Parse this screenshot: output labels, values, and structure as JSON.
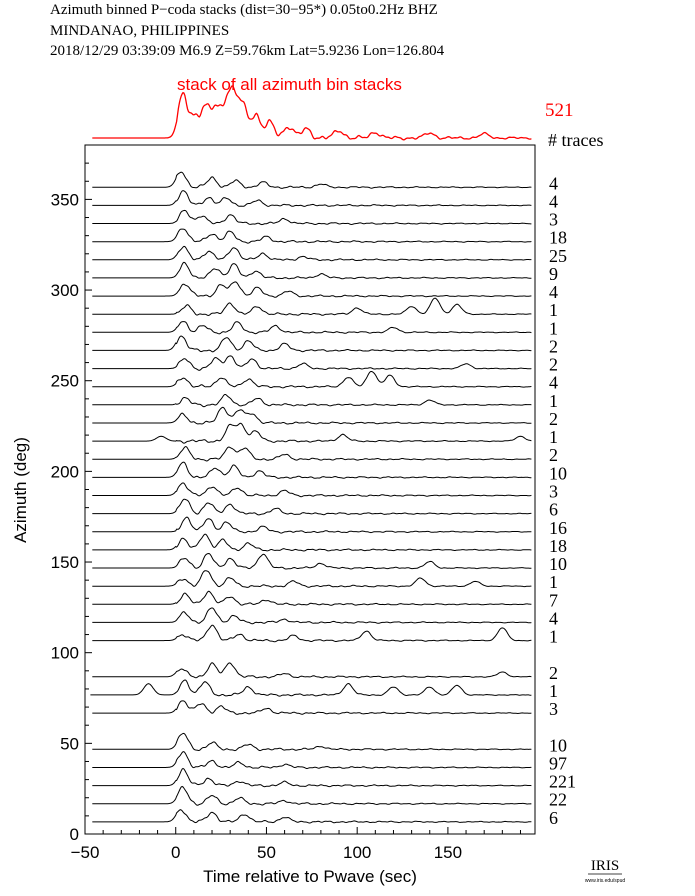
{
  "header": {
    "line1": "Azimuth binned P−coda stacks (dist=30−95*)  0.05to0.2Hz  BHZ",
    "line2": "MINDANAO, PHILIPPINES",
    "line3": "2018/12/29  03:39:09  M6.9  Z=59.76km Lat=5.9236 Lon=126.804"
  },
  "logo": {
    "text": "IRIS",
    "sub": "www.iris.edu/spud"
  },
  "colors": {
    "stack": "#ff0000",
    "trace": "#000000"
  },
  "chart_data": {
    "type": "line",
    "stack": {
      "label": "stack of all azimuth bin stacks",
      "count": "521",
      "peaks": [
        [
          4,
          1.0
        ],
        [
          10,
          0.45
        ],
        [
          16,
          0.65
        ],
        [
          22,
          0.7
        ],
        [
          28,
          0.75
        ],
        [
          32,
          0.78
        ],
        [
          37,
          0.7
        ],
        [
          44,
          0.55
        ],
        [
          52,
          0.35
        ],
        [
          62,
          0.28
        ],
        [
          72,
          0.22
        ],
        [
          90,
          0.18
        ],
        [
          110,
          0.14
        ],
        [
          140,
          0.12
        ],
        [
          170,
          0.1
        ]
      ]
    },
    "traces_header": "# traces",
    "xlabel": "Time relative to Pwave (sec)",
    "ylabel": "Azimuth (deg)",
    "xlim": [
      -50,
      198
    ],
    "ylim": [
      0,
      380
    ],
    "xticks": [
      -50,
      0,
      50,
      100,
      150
    ],
    "yticks": [
      0,
      50,
      100,
      150,
      200,
      250,
      300,
      350
    ],
    "traces": [
      {
        "azimuth": 360,
        "count": "4",
        "peaks": [
          [
            3,
            1.0
          ],
          [
            20,
            0.6
          ],
          [
            33,
            0.4
          ],
          [
            48,
            0.3
          ],
          [
            80,
            0.2
          ]
        ]
      },
      {
        "azimuth": 350,
        "count": "4",
        "peaks": [
          [
            4,
            0.9
          ],
          [
            18,
            0.5
          ],
          [
            28,
            0.45
          ],
          [
            45,
            0.3
          ]
        ]
      },
      {
        "azimuth": 340,
        "count": "3",
        "peaks": [
          [
            5,
            0.8
          ],
          [
            14,
            0.5
          ],
          [
            30,
            0.55
          ],
          [
            60,
            0.3
          ]
        ]
      },
      {
        "azimuth": 330,
        "count": "18",
        "peaks": [
          [
            4,
            0.9
          ],
          [
            20,
            0.5
          ],
          [
            30,
            0.6
          ],
          [
            50,
            0.3
          ]
        ]
      },
      {
        "azimuth": 320,
        "count": "25",
        "peaks": [
          [
            4,
            0.8
          ],
          [
            18,
            0.55
          ],
          [
            32,
            0.8
          ],
          [
            48,
            0.4
          ],
          [
            70,
            0.2
          ]
        ]
      },
      {
        "azimuth": 310,
        "count": "9",
        "peaks": [
          [
            5,
            0.9
          ],
          [
            22,
            0.6
          ],
          [
            32,
            0.85
          ],
          [
            44,
            0.45
          ],
          [
            80,
            0.25
          ]
        ]
      },
      {
        "azimuth": 300,
        "count": "4",
        "peaks": [
          [
            5,
            0.8
          ],
          [
            25,
            0.7
          ],
          [
            33,
            0.9
          ],
          [
            45,
            0.5
          ],
          [
            62,
            0.3
          ]
        ]
      },
      {
        "azimuth": 290,
        "count": "1",
        "peaks": [
          [
            6,
            0.5
          ],
          [
            30,
            0.7
          ],
          [
            45,
            0.5
          ],
          [
            100,
            0.4
          ],
          [
            130,
            0.5
          ],
          [
            143,
            1.0
          ],
          [
            155,
            0.6
          ]
        ]
      },
      {
        "azimuth": 280,
        "count": "1",
        "peaks": [
          [
            4,
            0.7
          ],
          [
            15,
            0.4
          ],
          [
            34,
            0.6
          ],
          [
            55,
            0.4
          ],
          [
            120,
            0.3
          ]
        ]
      },
      {
        "azimuth": 270,
        "count": "2",
        "peaks": [
          [
            3,
            0.9
          ],
          [
            28,
            0.8
          ],
          [
            40,
            0.6
          ],
          [
            60,
            0.4
          ]
        ]
      },
      {
        "azimuth": 260,
        "count": "2",
        "peaks": [
          [
            5,
            0.6
          ],
          [
            22,
            0.6
          ],
          [
            30,
            0.8
          ],
          [
            42,
            0.6
          ],
          [
            70,
            0.3
          ],
          [
            160,
            0.3
          ]
        ]
      },
      {
        "azimuth": 250,
        "count": "4",
        "peaks": [
          [
            4,
            0.6
          ],
          [
            25,
            0.6
          ],
          [
            40,
            0.5
          ],
          [
            95,
            0.6
          ],
          [
            108,
            1.0
          ],
          [
            118,
            0.7
          ]
        ]
      },
      {
        "azimuth": 240,
        "count": "1",
        "peaks": [
          [
            5,
            0.4
          ],
          [
            28,
            0.6
          ],
          [
            45,
            0.4
          ],
          [
            140,
            0.3
          ]
        ]
      },
      {
        "azimuth": 230,
        "count": "2",
        "peaks": [
          [
            4,
            0.5
          ],
          [
            26,
            1.0
          ],
          [
            35,
            0.8
          ],
          [
            42,
            0.6
          ]
        ]
      },
      {
        "azimuth": 220,
        "count": "1",
        "peaks": [
          [
            -8,
            0.3
          ],
          [
            30,
            0.9
          ],
          [
            36,
            1.0
          ],
          [
            44,
            0.6
          ],
          [
            92,
            0.4
          ],
          [
            190,
            0.3
          ]
        ]
      },
      {
        "azimuth": 210,
        "count": "2",
        "peaks": [
          [
            5,
            0.7
          ],
          [
            30,
            0.8
          ],
          [
            38,
            0.7
          ],
          [
            60,
            0.3
          ]
        ]
      },
      {
        "azimuth": 200,
        "count": "10",
        "peaks": [
          [
            4,
            0.9
          ],
          [
            22,
            0.6
          ],
          [
            32,
            0.7
          ],
          [
            46,
            0.4
          ]
        ]
      },
      {
        "azimuth": 190,
        "count": "3",
        "peaks": [
          [
            4,
            0.8
          ],
          [
            20,
            0.6
          ],
          [
            34,
            0.5
          ],
          [
            60,
            0.3
          ]
        ]
      },
      {
        "azimuth": 180,
        "count": "6",
        "peaks": [
          [
            5,
            0.9
          ],
          [
            18,
            0.7
          ],
          [
            30,
            0.6
          ],
          [
            55,
            0.3
          ]
        ]
      },
      {
        "azimuth": 170,
        "count": "16",
        "peaks": [
          [
            6,
            0.9
          ],
          [
            18,
            0.8
          ],
          [
            28,
            0.6
          ],
          [
            48,
            0.3
          ]
        ]
      },
      {
        "azimuth": 160,
        "count": "18",
        "peaks": [
          [
            4,
            0.7
          ],
          [
            16,
            1.0
          ],
          [
            26,
            0.6
          ],
          [
            40,
            0.4
          ]
        ]
      },
      {
        "azimuth": 150,
        "count": "10",
        "peaks": [
          [
            5,
            0.6
          ],
          [
            18,
            0.9
          ],
          [
            30,
            0.6
          ],
          [
            48,
            0.9
          ],
          [
            80,
            0.3
          ],
          [
            140,
            0.4
          ]
        ]
      },
      {
        "azimuth": 140,
        "count": "1",
        "peaks": [
          [
            4,
            0.5
          ],
          [
            17,
            1.0
          ],
          [
            30,
            0.5
          ],
          [
            65,
            0.3
          ],
          [
            135,
            0.5
          ],
          [
            165,
            0.3
          ]
        ]
      },
      {
        "azimuth": 130,
        "count": "7",
        "peaks": [
          [
            5,
            0.6
          ],
          [
            18,
            0.8
          ],
          [
            30,
            0.5
          ],
          [
            50,
            0.3
          ]
        ]
      },
      {
        "azimuth": 120,
        "count": "4",
        "peaks": [
          [
            5,
            0.6
          ],
          [
            20,
            0.9
          ],
          [
            32,
            0.4
          ],
          [
            60,
            0.2
          ]
        ]
      },
      {
        "azimuth": 110,
        "count": "1",
        "peaks": [
          [
            4,
            0.4
          ],
          [
            20,
            1.0
          ],
          [
            35,
            0.4
          ],
          [
            65,
            0.3
          ],
          [
            105,
            0.6
          ],
          [
            180,
            0.8
          ]
        ]
      },
      {
        "azimuth": 90,
        "count": "2",
        "peaks": [
          [
            3,
            0.5
          ],
          [
            20,
            0.8
          ],
          [
            30,
            0.9
          ],
          [
            60,
            0.2
          ],
          [
            180,
            0.3
          ]
        ]
      },
      {
        "azimuth": 80,
        "count": "1",
        "peaks": [
          [
            -15,
            0.7
          ],
          [
            5,
            0.9
          ],
          [
            16,
            0.8
          ],
          [
            40,
            0.5
          ],
          [
            95,
            0.7
          ],
          [
            120,
            0.5
          ],
          [
            140,
            0.5
          ],
          [
            155,
            0.6
          ]
        ]
      },
      {
        "azimuth": 70,
        "count": "3",
        "peaks": [
          [
            4,
            0.8
          ],
          [
            14,
            0.6
          ],
          [
            25,
            0.4
          ],
          [
            50,
            0.3
          ]
        ]
      },
      {
        "azimuth": 50,
        "count": "10",
        "peaks": [
          [
            4,
            1.0
          ],
          [
            20,
            0.4
          ],
          [
            40,
            0.3
          ],
          [
            80,
            0.2
          ]
        ]
      },
      {
        "azimuth": 40,
        "count": "97",
        "peaks": [
          [
            4,
            1.0
          ],
          [
            20,
            0.4
          ],
          [
            35,
            0.3
          ],
          [
            60,
            0.2
          ]
        ]
      },
      {
        "azimuth": 30,
        "count": "221",
        "peaks": [
          [
            4,
            1.0
          ],
          [
            18,
            0.45
          ],
          [
            35,
            0.3
          ],
          [
            60,
            0.2
          ]
        ]
      },
      {
        "azimuth": 20,
        "count": "22",
        "peaks": [
          [
            4,
            1.0
          ],
          [
            20,
            0.5
          ],
          [
            35,
            0.35
          ],
          [
            60,
            0.2
          ]
        ]
      },
      {
        "azimuth": 10,
        "count": "6",
        "peaks": [
          [
            3,
            0.8
          ],
          [
            20,
            0.6
          ],
          [
            38,
            0.5
          ],
          [
            60,
            0.3
          ]
        ]
      }
    ]
  }
}
